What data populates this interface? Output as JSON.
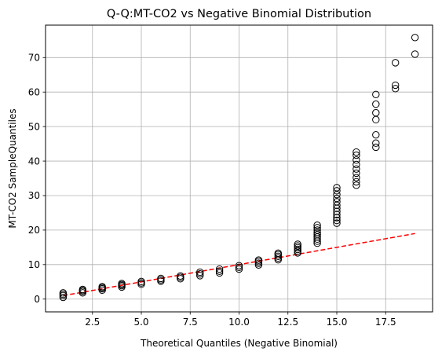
{
  "chart_data": {
    "type": "scatter",
    "title": "Q-Q:MT-CO2 vs Negative Binomial Distribution",
    "xlabel": "Theoretical Quantiles (Negative Binomial)",
    "ylabel": "MT-CO2 SampleQuantiles",
    "xlim": [
      0.1,
      19.9
    ],
    "ylim": [
      -3.7,
      79.4
    ],
    "xticks": [
      2.5,
      5.0,
      7.5,
      10.0,
      12.5,
      15.0,
      17.5
    ],
    "xtick_labels": [
      "2.5",
      "5.0",
      "7.5",
      "10.0",
      "12.5",
      "15.0",
      "17.5"
    ],
    "yticks": [
      0,
      10,
      20,
      30,
      40,
      50,
      60,
      70
    ],
    "ytick_labels": [
      "0",
      "10",
      "20",
      "30",
      "40",
      "50",
      "60",
      "70"
    ],
    "grid": true,
    "colors": {
      "markers": "#000000",
      "reference_line": "#ff0000",
      "grid": "#b0b0b0"
    },
    "points": [
      {
        "x": 1,
        "y": 0.5
      },
      {
        "x": 1,
        "y": 1.0
      },
      {
        "x": 1,
        "y": 1.4
      },
      {
        "x": 1,
        "y": 1.8
      },
      {
        "x": 2,
        "y": 1.8
      },
      {
        "x": 2,
        "y": 2.2
      },
      {
        "x": 2,
        "y": 2.5
      },
      {
        "x": 2,
        "y": 2.8
      },
      {
        "x": 3,
        "y": 2.6
      },
      {
        "x": 3,
        "y": 3.0
      },
      {
        "x": 3,
        "y": 3.3
      },
      {
        "x": 3,
        "y": 3.6
      },
      {
        "x": 4,
        "y": 3.5
      },
      {
        "x": 4,
        "y": 3.9
      },
      {
        "x": 4,
        "y": 4.2
      },
      {
        "x": 4,
        "y": 4.5
      },
      {
        "x": 5,
        "y": 4.3
      },
      {
        "x": 5,
        "y": 4.7
      },
      {
        "x": 5,
        "y": 5.1
      },
      {
        "x": 6,
        "y": 5.2
      },
      {
        "x": 6,
        "y": 5.6
      },
      {
        "x": 6,
        "y": 6.0
      },
      {
        "x": 7,
        "y": 5.9
      },
      {
        "x": 7,
        "y": 6.3
      },
      {
        "x": 7,
        "y": 6.7
      },
      {
        "x": 8,
        "y": 6.8
      },
      {
        "x": 8,
        "y": 7.3
      },
      {
        "x": 8,
        "y": 7.8
      },
      {
        "x": 9,
        "y": 7.6
      },
      {
        "x": 9,
        "y": 8.1
      },
      {
        "x": 9,
        "y": 8.7
      },
      {
        "x": 10,
        "y": 8.7
      },
      {
        "x": 10,
        "y": 9.2
      },
      {
        "x": 10,
        "y": 9.7
      },
      {
        "x": 11,
        "y": 9.9
      },
      {
        "x": 11,
        "y": 10.4
      },
      {
        "x": 11,
        "y": 10.9
      },
      {
        "x": 11,
        "y": 11.3
      },
      {
        "x": 12,
        "y": 11.4
      },
      {
        "x": 12,
        "y": 11.9
      },
      {
        "x": 12,
        "y": 12.4
      },
      {
        "x": 12,
        "y": 12.9
      },
      {
        "x": 12,
        "y": 13.3
      },
      {
        "x": 13,
        "y": 13.4
      },
      {
        "x": 13,
        "y": 13.9
      },
      {
        "x": 13,
        "y": 14.4
      },
      {
        "x": 13,
        "y": 14.9
      },
      {
        "x": 13,
        "y": 15.4
      },
      {
        "x": 13,
        "y": 15.9
      },
      {
        "x": 14,
        "y": 16.2
      },
      {
        "x": 14,
        "y": 16.8
      },
      {
        "x": 14,
        "y": 17.4
      },
      {
        "x": 14,
        "y": 18.0
      },
      {
        "x": 14,
        "y": 18.7
      },
      {
        "x": 14,
        "y": 19.3
      },
      {
        "x": 14,
        "y": 20.0
      },
      {
        "x": 14,
        "y": 20.7
      },
      {
        "x": 14,
        "y": 21.4
      },
      {
        "x": 15,
        "y": 22.0
      },
      {
        "x": 15,
        "y": 22.8
      },
      {
        "x": 15,
        "y": 23.6
      },
      {
        "x": 15,
        "y": 24.5
      },
      {
        "x": 15,
        "y": 25.4
      },
      {
        "x": 15,
        "y": 26.3
      },
      {
        "x": 15,
        "y": 27.2
      },
      {
        "x": 15,
        "y": 28.2
      },
      {
        "x": 15,
        "y": 29.2
      },
      {
        "x": 15,
        "y": 30.3
      },
      {
        "x": 15,
        "y": 31.4
      },
      {
        "x": 15,
        "y": 32.3
      },
      {
        "x": 16,
        "y": 33.0
      },
      {
        "x": 16,
        "y": 34.0
      },
      {
        "x": 16,
        "y": 35.2
      },
      {
        "x": 16,
        "y": 36.5
      },
      {
        "x": 16,
        "y": 37.7
      },
      {
        "x": 16,
        "y": 39.0
      },
      {
        "x": 16,
        "y": 40.3
      },
      {
        "x": 16,
        "y": 41.7
      },
      {
        "x": 16,
        "y": 42.6
      },
      {
        "x": 17,
        "y": 44.0
      },
      {
        "x": 17,
        "y": 45.2
      },
      {
        "x": 17,
        "y": 47.6
      },
      {
        "x": 17,
        "y": 52.0
      },
      {
        "x": 17,
        "y": 54.0
      },
      {
        "x": 17,
        "y": 56.5
      },
      {
        "x": 17,
        "y": 59.3
      },
      {
        "x": 18,
        "y": 61.0
      },
      {
        "x": 18,
        "y": 62.0
      },
      {
        "x": 18,
        "y": 68.5
      },
      {
        "x": 19,
        "y": 71.0
      },
      {
        "x": 19,
        "y": 75.8
      }
    ],
    "reference_line": {
      "x": [
        1,
        19
      ],
      "y": [
        1,
        19
      ],
      "style": "dashed"
    }
  }
}
